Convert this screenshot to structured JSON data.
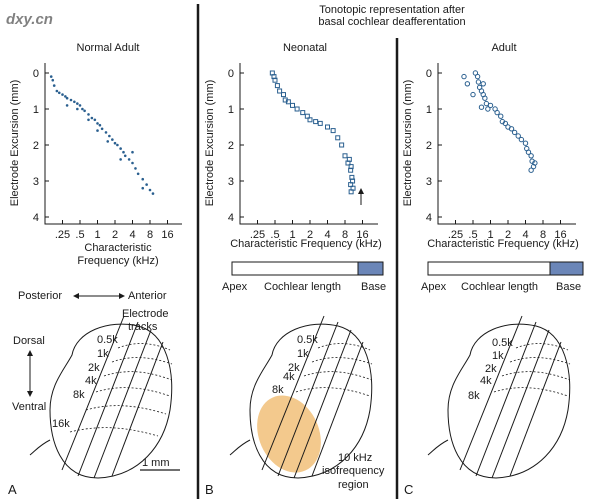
{
  "header": {
    "line1": "Tonotopic representation after",
    "line2": "basal cochlear deafferentation"
  },
  "watermark": "dxy.cn",
  "colors": {
    "points": "#2a5f8f",
    "base_bar": "#6b86b8",
    "isofrequency_region": "#f3c98d",
    "divider": "#1a1a1a"
  },
  "axis": {
    "ylabel": "Electrode Excursion (mm)",
    "y_ticks": [
      "0",
      "1",
      "2",
      "3",
      "4"
    ],
    "x_ticks": [
      ".25",
      ".5",
      "1",
      "2",
      "4",
      "8",
      "16"
    ],
    "xlabel_line1": "Characteristic",
    "xlabel_line2": "Frequency (kHz)",
    "xlabel_single": "Characteristic Frequency (kHz)"
  },
  "cochlea_bar": {
    "apex": "Apex",
    "length": "Cochlear length",
    "base": "Base"
  },
  "panels": [
    {
      "title": "Normal Adult",
      "letter": "A"
    },
    {
      "title": "Neonatal",
      "letter": "B"
    },
    {
      "title": "Adult",
      "letter": "C"
    }
  ],
  "map_labels": {
    "posterior": "Posterior",
    "anterior": "Anterior",
    "dorsal": "Dorsal",
    "ventral": "Ventral",
    "electrode_line1": "Electrode",
    "electrode_line2": "tracks",
    "scale": "1 mm",
    "freqs_a": [
      "0.5k",
      "1k",
      "2k",
      "4k",
      "8k",
      "16k"
    ],
    "freqs_bc": [
      "0.5k",
      "1k",
      "2k",
      "4k",
      "8k"
    ],
    "region_line1": "10 kHz",
    "region_line2": "isofrequency",
    "region_line3": "region"
  },
  "chart_data": [
    {
      "type": "scatter",
      "title": "Normal Adult",
      "xlabel": "Characteristic Frequency (kHz)",
      "ylabel": "Electrode Excursion (mm)",
      "x_scale": "log2",
      "xlim": [
        0.125,
        16
      ],
      "ylim": [
        0,
        4
      ],
      "y_inverted": true,
      "series": [
        {
          "points": [
            [
              0.16,
              0.1
            ],
            [
              0.17,
              0.2
            ],
            [
              0.18,
              0.35
            ],
            [
              0.2,
              0.5
            ],
            [
              0.22,
              0.55
            ],
            [
              0.25,
              0.6
            ],
            [
              0.28,
              0.65
            ],
            [
              0.3,
              0.7
            ],
            [
              0.35,
              0.75
            ],
            [
              0.4,
              0.8
            ],
            [
              0.45,
              0.85
            ],
            [
              0.5,
              0.9
            ],
            [
              0.55,
              1.0
            ],
            [
              0.6,
              1.05
            ],
            [
              0.7,
              1.15
            ],
            [
              0.8,
              1.25
            ],
            [
              0.9,
              1.3
            ],
            [
              1.0,
              1.4
            ],
            [
              1.1,
              1.45
            ],
            [
              1.2,
              1.55
            ],
            [
              1.4,
              1.65
            ],
            [
              1.6,
              1.75
            ],
            [
              1.8,
              1.85
            ],
            [
              2.0,
              1.95
            ],
            [
              2.2,
              2.0
            ],
            [
              2.5,
              2.1
            ],
            [
              2.8,
              2.2
            ],
            [
              3.0,
              2.3
            ],
            [
              3.5,
              2.4
            ],
            [
              4.0,
              2.5
            ],
            [
              4.5,
              2.65
            ],
            [
              5.0,
              2.8
            ],
            [
              6.0,
              2.95
            ],
            [
              7.0,
              3.1
            ],
            [
              8.0,
              3.25
            ],
            [
              9.0,
              3.35
            ],
            [
              0.3,
              0.9
            ],
            [
              0.45,
              1.0
            ],
            [
              0.7,
              1.3
            ],
            [
              1.0,
              1.6
            ],
            [
              1.5,
              1.9
            ],
            [
              2.5,
              2.4
            ],
            [
              4.0,
              2.2
            ],
            [
              6.0,
              3.2
            ]
          ]
        }
      ]
    },
    {
      "type": "scatter",
      "title": "Neonatal",
      "xlabel": "Characteristic Frequency (kHz)",
      "ylabel": "Electrode Excursion (mm)",
      "x_scale": "log2",
      "xlim": [
        0.125,
        16
      ],
      "ylim": [
        0,
        4
      ],
      "y_inverted": true,
      "series": [
        {
          "points": [
            [
              0.45,
              0.0
            ],
            [
              0.48,
              0.1
            ],
            [
              0.5,
              0.2
            ],
            [
              0.55,
              0.35
            ],
            [
              0.6,
              0.5
            ],
            [
              0.7,
              0.6
            ],
            [
              0.75,
              0.75
            ],
            [
              0.85,
              0.8
            ],
            [
              1.0,
              0.9
            ],
            [
              1.2,
              1.0
            ],
            [
              1.5,
              1.1
            ],
            [
              1.8,
              1.2
            ],
            [
              2.0,
              1.3
            ],
            [
              2.5,
              1.35
            ],
            [
              3.0,
              1.4
            ],
            [
              4.0,
              1.5
            ],
            [
              5.0,
              1.6
            ],
            [
              6.0,
              1.8
            ],
            [
              7.0,
              2.0
            ],
            [
              8.0,
              2.3
            ],
            [
              9.0,
              2.5
            ],
            [
              10.0,
              2.7
            ],
            [
              10.5,
              2.9
            ],
            [
              10.0,
              3.1
            ],
            [
              11.0,
              3.2
            ],
            [
              10.2,
              3.3
            ],
            [
              10.8,
              3.0
            ],
            [
              9.5,
              2.4
            ],
            [
              10.2,
              2.6
            ]
          ]
        }
      ]
    },
    {
      "type": "scatter",
      "title": "Adult",
      "xlabel": "Characteristic Frequency (kHz)",
      "ylabel": "Electrode Excursion (mm)",
      "x_scale": "log2",
      "xlim": [
        0.125,
        16
      ],
      "ylim": [
        0,
        4
      ],
      "y_inverted": true,
      "series": [
        {
          "points": [
            [
              0.35,
              0.1
            ],
            [
              0.4,
              0.3
            ],
            [
              0.55,
              0.0
            ],
            [
              0.6,
              0.1
            ],
            [
              0.62,
              0.25
            ],
            [
              0.65,
              0.4
            ],
            [
              0.7,
              0.5
            ],
            [
              0.75,
              0.6
            ],
            [
              0.8,
              0.7
            ],
            [
              0.85,
              0.85
            ],
            [
              0.7,
              0.95
            ],
            [
              0.9,
              1.0
            ],
            [
              1.0,
              0.9
            ],
            [
              1.2,
              1.0
            ],
            [
              1.3,
              1.1
            ],
            [
              1.5,
              1.2
            ],
            [
              1.6,
              1.35
            ],
            [
              1.8,
              1.4
            ],
            [
              2.0,
              1.5
            ],
            [
              2.3,
              1.55
            ],
            [
              2.6,
              1.65
            ],
            [
              3.0,
              1.75
            ],
            [
              3.4,
              1.85
            ],
            [
              4.0,
              1.95
            ],
            [
              4.2,
              2.1
            ],
            [
              4.5,
              2.2
            ],
            [
              5.0,
              2.3
            ],
            [
              5.2,
              2.45
            ],
            [
              5.5,
              2.6
            ],
            [
              5.0,
              2.7
            ],
            [
              5.8,
              2.5
            ],
            [
              0.5,
              0.6
            ],
            [
              0.75,
              0.3
            ]
          ]
        }
      ]
    }
  ]
}
